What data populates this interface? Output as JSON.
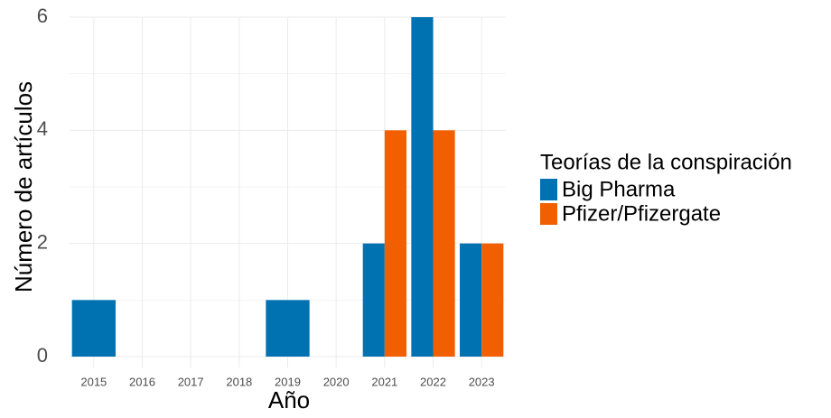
{
  "chart_data": {
    "type": "bar",
    "categories": [
      "2015",
      "2016",
      "2017",
      "2018",
      "2019",
      "2020",
      "2021",
      "2022",
      "2023"
    ],
    "series": [
      {
        "name": "Big Pharma",
        "color": "#0072b2",
        "values": [
          1,
          null,
          null,
          null,
          1,
          null,
          2,
          6,
          2
        ]
      },
      {
        "name": "Pfizer/Pfizergate",
        "color": "#f25f00",
        "values": [
          null,
          null,
          null,
          null,
          null,
          null,
          4,
          4,
          2
        ]
      }
    ],
    "xlabel": "Año",
    "ylabel": "Número de artículos",
    "legend_title": "Teorías de la conspiración",
    "ylim": [
      0,
      6
    ],
    "yticks": [
      0,
      2,
      4,
      6
    ],
    "grid": true,
    "legend": "right"
  }
}
